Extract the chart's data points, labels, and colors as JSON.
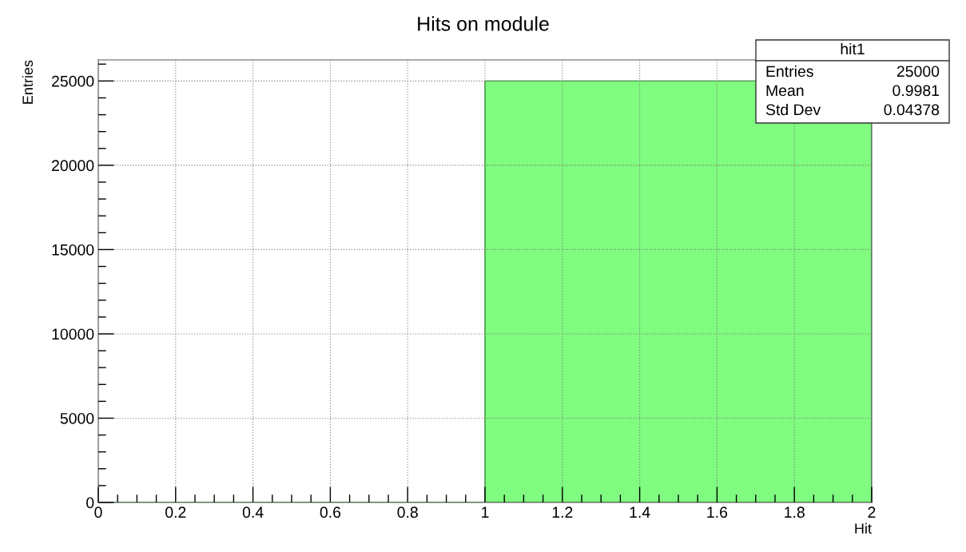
{
  "chart_data": {
    "type": "histogram",
    "title": "Hits on module",
    "xlabel": "Hit",
    "ylabel": "Entries",
    "bins": [
      0,
      1,
      2
    ],
    "values": [
      0,
      25000
    ],
    "color": "#80fc80",
    "xlim": [
      0,
      2
    ],
    "xticks": [
      0,
      0.2,
      0.4,
      0.6,
      0.8,
      1,
      1.2,
      1.4,
      1.6,
      1.8,
      2
    ],
    "ylim": [
      0,
      26250
    ],
    "yticks": [
      0,
      5000,
      10000,
      15000,
      20000,
      25000
    ],
    "grid": true,
    "annotations": [
      "hit1",
      "Entries",
      "25000",
      "Mean",
      "0.9981",
      "Std Dev",
      "0.04378"
    ]
  }
}
